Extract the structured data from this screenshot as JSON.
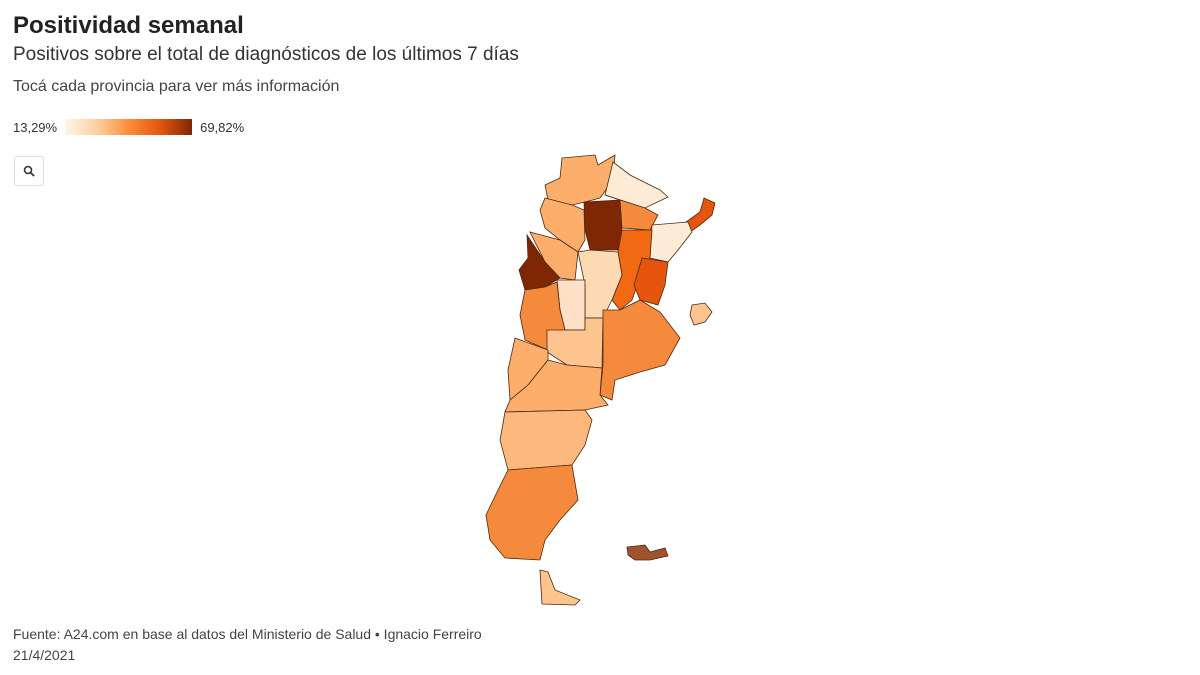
{
  "header": {
    "title": "Positividad semanal",
    "subtitle": "Positivos sobre el total de diagnósticos de los últimos 7 días",
    "instruction": "Tocá cada provincia para ver más información"
  },
  "legend": {
    "min_label": "13,29%",
    "max_label": "69,82%"
  },
  "footer": {
    "source": "Fuente: A24.com en base al datos del Ministerio de Salud • Ignacio Ferreiro",
    "date": "21/4/2021"
  }
}
